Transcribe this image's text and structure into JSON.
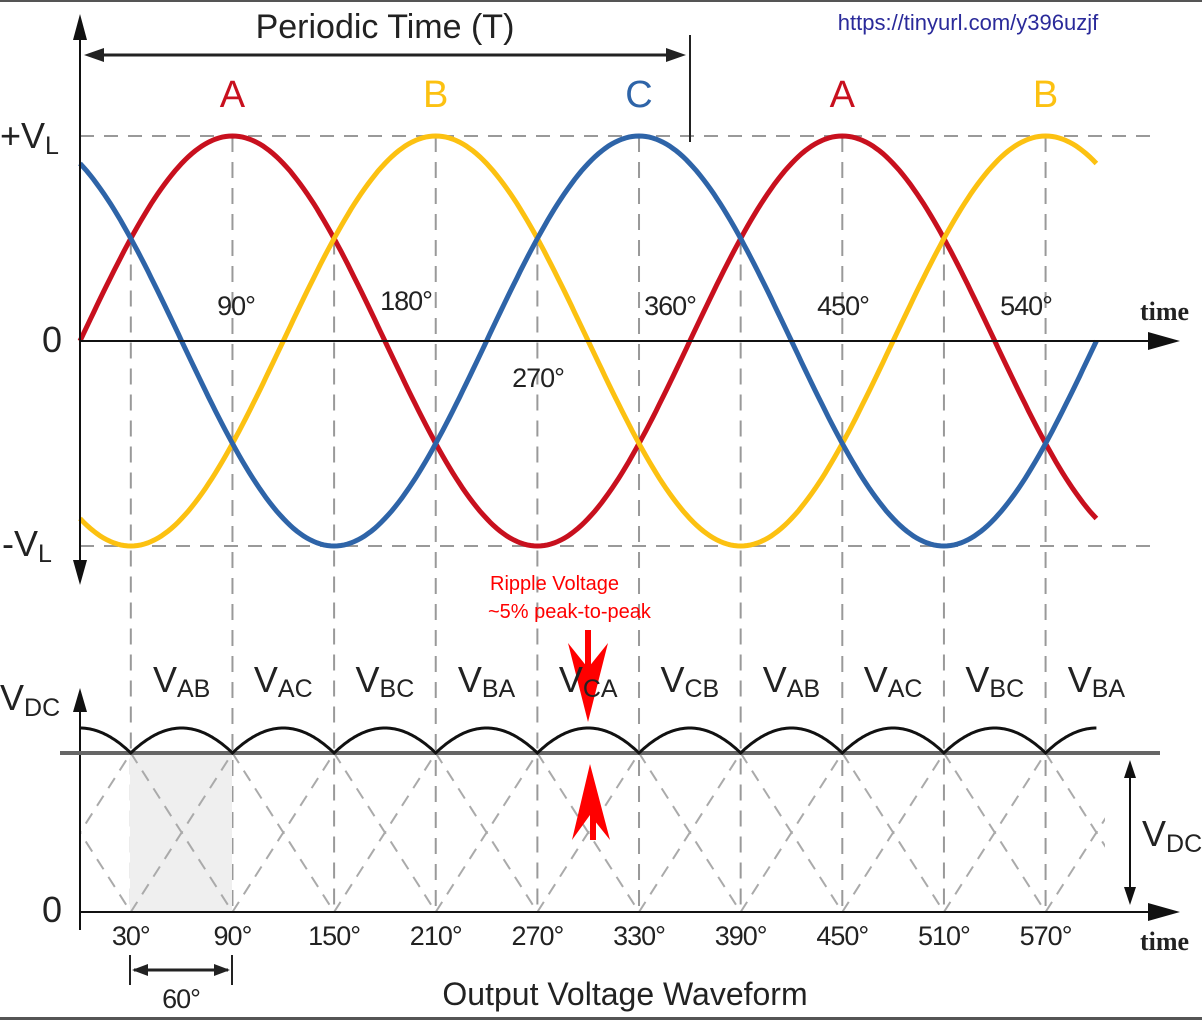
{
  "title": "Periodic Time (T)",
  "url": "https://tinyurl.com/y396uzjf",
  "colors": {
    "A": "#c8101e",
    "B": "#fcc111",
    "C": "#2e64a8",
    "ripple_note": "#ff0000",
    "axis": "#111111",
    "dashed": "#8a8a8a"
  },
  "phases": [
    {
      "name": "A",
      "peak_deg": 90,
      "color": "#c8101e"
    },
    {
      "name": "B",
      "peak_deg": 210,
      "color": "#fcc111"
    },
    {
      "name": "C",
      "peak_deg": 330,
      "color": "#2e64a8"
    }
  ],
  "phase_labels": [
    {
      "text": "A",
      "color": "#c8101e"
    },
    {
      "text": "B",
      "color": "#fcc111"
    },
    {
      "text": "C",
      "color": "#2e64a8"
    },
    {
      "text": "A",
      "color": "#c8101e"
    },
    {
      "text": "B",
      "color": "#fcc111"
    }
  ],
  "top_axis": {
    "plus_label": "+V",
    "plus_sub": "L",
    "minus_label": "-V",
    "minus_sub": "L",
    "zero_label": "0",
    "time_label": "time",
    "degree_labels": [
      "90°",
      "180°",
      "270°",
      "360°",
      "450°",
      "540°"
    ],
    "range_deg": [
      0,
      600
    ]
  },
  "segments": [
    {
      "v": "V",
      "sub": "AB"
    },
    {
      "v": "V",
      "sub": "AC"
    },
    {
      "v": "V",
      "sub": "BC"
    },
    {
      "v": "V",
      "sub": "BA"
    },
    {
      "v": "V",
      "sub": "CA"
    },
    {
      "v": "V",
      "sub": "CB"
    },
    {
      "v": "V",
      "sub": "AB"
    },
    {
      "v": "V",
      "sub": "AC"
    },
    {
      "v": "V",
      "sub": "BC"
    },
    {
      "v": "V",
      "sub": "BA"
    }
  ],
  "bottom_axis": {
    "vdc_label": "V",
    "vdc_sub": "DC",
    "vdc_right_label": "V",
    "vdc_right_sub": "DC",
    "zero_label": "0",
    "time_label": "time",
    "degree_labels": [
      "30°",
      "90°",
      "150°",
      "210°",
      "270°",
      "330°",
      "390°",
      "450°",
      "510°",
      "570°"
    ],
    "interval_label": "60°",
    "caption": "Output Voltage Waveform"
  },
  "ripple": {
    "line1": "Ripple Voltage",
    "line2": "~5% peak-to-peak",
    "percent": 5
  }
}
